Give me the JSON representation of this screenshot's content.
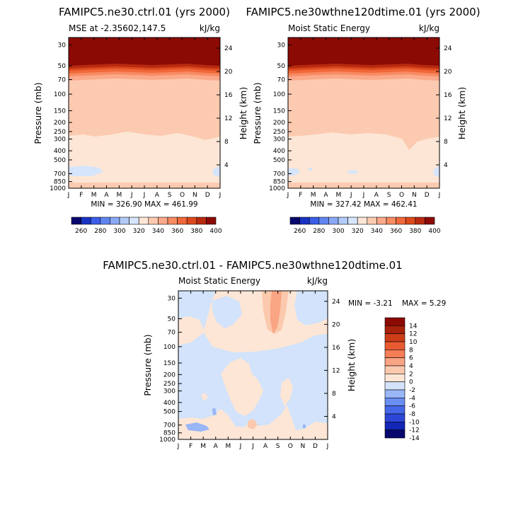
{
  "colors": {
    "seq": [
      "#08086e",
      "#1a33c4",
      "#3a5ee8",
      "#5f85f0",
      "#8aa9f5",
      "#b2cbf8",
      "#d6e5fb",
      "#fde6d6",
      "#fccab0",
      "#fba98a",
      "#f78b62",
      "#f0683b",
      "#dd4a1e",
      "#b82a10",
      "#8c0a04"
    ],
    "diff": [
      "#08086e",
      "#1326b5",
      "#2d46d8",
      "#4568e8",
      "#6a8ef2",
      "#99b6f7",
      "#d2e3fb",
      "#fde6d6",
      "#fbc9ad",
      "#f9a483",
      "#f57d57",
      "#e85a31",
      "#cc3d18",
      "#a8210a",
      "#8c0a04"
    ]
  },
  "axis_labels": {
    "pressure": "Pressure (mb)",
    "height": "Height (km)"
  },
  "charts": {
    "top_left": {
      "title": "FAMIPC5.ne30.ctrl.01 (yrs 2000)",
      "left_label": "MSE at -2.35602,147.5",
      "units": "kJ/kg",
      "minmax": "MIN = 326.90 MAX = 461.99"
    },
    "top_right": {
      "title": "FAMIPC5.ne30wthne120dtime.01 (yrs 2000)",
      "left_label": "Moist Static Energy",
      "units": "kJ/kg",
      "minmax": "MIN = 327.42 MAX = 462.41"
    },
    "bottom": {
      "title": "FAMIPC5.ne30.ctrl.01 - FAMIPC5.ne30wthne120dtime.01",
      "left_label": "Moist Static Energy",
      "units": "kJ/kg",
      "minmax_min": "MIN =   -3.21",
      "minmax_max": "MAX =    5.29"
    }
  },
  "chart_data": [
    {
      "type": "heatmap",
      "title": "FAMIPC5.ne30.ctrl.01 (yrs 2000)",
      "subtitle": "MSE at -2.35602,147.5",
      "units": "kJ/kg",
      "x": [
        "J",
        "F",
        "M",
        "A",
        "M",
        "J",
        "J",
        "A",
        "S",
        "O",
        "N",
        "D",
        "J"
      ],
      "y_pressure_ticks": [
        30,
        50,
        70,
        100,
        150,
        200,
        250,
        300,
        400,
        500,
        700,
        850,
        1000
      ],
      "y_height_ticks": [
        4,
        8,
        12,
        16,
        20,
        24
      ],
      "pressure_range": [
        1000,
        25
      ],
      "contour_levels": [
        260,
        270,
        280,
        290,
        300,
        310,
        320,
        330,
        340,
        350,
        360,
        370,
        380,
        390,
        400
      ],
      "colorbar_labels": [
        "260",
        "280",
        "300",
        "320",
        "340",
        "360",
        "380",
        "400"
      ],
      "min": 326.9,
      "max": 461.99
    },
    {
      "type": "heatmap",
      "title": "FAMIPC5.ne30wthne120dtime.01 (yrs 2000)",
      "subtitle": "Moist Static Energy",
      "units": "kJ/kg",
      "x": [
        "J",
        "F",
        "M",
        "A",
        "M",
        "J",
        "J",
        "A",
        "S",
        "O",
        "N",
        "D",
        "J"
      ],
      "y_pressure_ticks": [
        30,
        50,
        70,
        100,
        150,
        200,
        250,
        300,
        400,
        500,
        700,
        850,
        1000
      ],
      "y_height_ticks": [
        4,
        8,
        12,
        16,
        20,
        24
      ],
      "pressure_range": [
        1000,
        25
      ],
      "contour_levels": [
        260,
        270,
        280,
        290,
        300,
        310,
        320,
        330,
        340,
        350,
        360,
        370,
        380,
        390,
        400
      ],
      "colorbar_labels": [
        "260",
        "280",
        "300",
        "320",
        "340",
        "360",
        "380",
        "400"
      ],
      "min": 327.42,
      "max": 462.41
    },
    {
      "type": "heatmap",
      "title": "FAMIPC5.ne30.ctrl.01 - FAMIPC5.ne30wthne120dtime.01",
      "subtitle": "Moist Static Energy",
      "units": "kJ/kg",
      "x": [
        "J",
        "F",
        "M",
        "A",
        "M",
        "J",
        "J",
        "A",
        "S",
        "O",
        "N",
        "D",
        "J"
      ],
      "y_pressure_ticks": [
        30,
        50,
        70,
        100,
        150,
        200,
        250,
        300,
        400,
        500,
        700,
        850,
        1000
      ],
      "y_height_ticks": [
        4,
        8,
        12,
        16,
        20,
        24
      ],
      "pressure_range": [
        1000,
        25
      ],
      "contour_levels": [
        -14,
        -12,
        -10,
        -8,
        -6,
        -4,
        -2,
        0,
        2,
        4,
        6,
        8,
        10,
        12,
        14
      ],
      "colorbar_labels": [
        "14",
        "12",
        "10",
        "8",
        "6",
        "4",
        "2",
        "0",
        "-2",
        "-4",
        "-6",
        "-8",
        "-10",
        "-12",
        "-14"
      ],
      "min": -3.21,
      "max": 5.29
    }
  ]
}
